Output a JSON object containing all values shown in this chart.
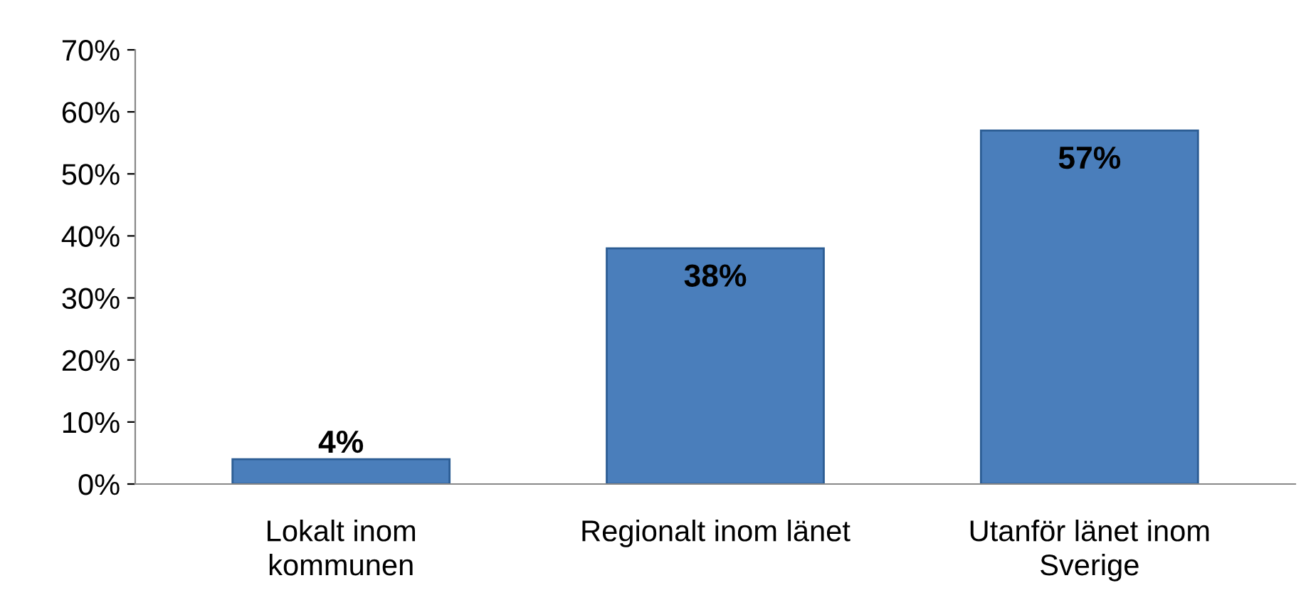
{
  "chart_data": {
    "type": "bar",
    "categories": [
      "Lokalt inom\nkommunen",
      "Regionalt inom länet",
      "Utanför länet inom\nSverige"
    ],
    "values": [
      4,
      38,
      57
    ],
    "value_labels": [
      "4%",
      "38%",
      "57%"
    ],
    "color": "#4a7ebb",
    "ylim": [
      0,
      70
    ],
    "yticks": [
      {
        "value": 0,
        "label": "0%"
      },
      {
        "value": 10,
        "label": "10%"
      },
      {
        "value": 20,
        "label": "20%"
      },
      {
        "value": 30,
        "label": "30%"
      },
      {
        "value": 40,
        "label": "40%"
      },
      {
        "value": 50,
        "label": "50%"
      },
      {
        "value": 60,
        "label": "60%"
      },
      {
        "value": 70,
        "label": "70%"
      }
    ],
    "grid": false,
    "legend": false
  }
}
